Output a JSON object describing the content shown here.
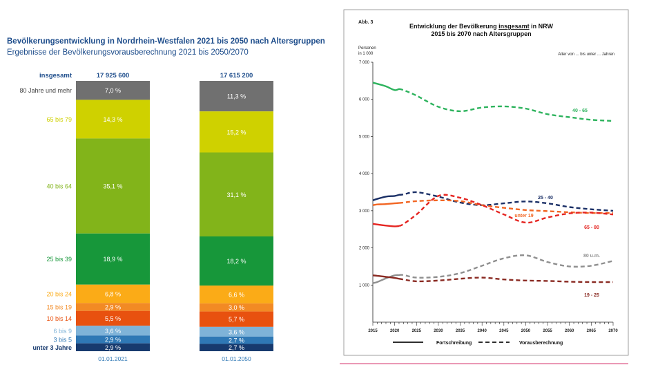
{
  "chart_data": [
    {
      "type": "stacked-bar",
      "title": "Bevölkerungsentwicklung in Nordrhein-Westfalen 2021 bis 2050 nach Altersgruppen",
      "subtitle": "Ergebnisse der Bevölkerungsvorausberechnung 2021 bis 2050/2070",
      "total_label": "insgesamt",
      "categories": [
        "80 Jahre und mehr",
        "65 bis 79",
        "40 bis 64",
        "25 bis 39",
        "20 bis 24",
        "15 bis 19",
        "10 bis 14",
        "6 bis 9",
        "3 bis 5",
        "unter 3 Jahre"
      ],
      "colors": [
        "#707070",
        "#cfd100",
        "#82b41a",
        "#17973a",
        "#fbab17",
        "#f28a24",
        "#e8510f",
        "#7fb3d8",
        "#2f78b5",
        "#173a6e"
      ],
      "bars": [
        {
          "date": "01.01.2021",
          "total": "17 925 600",
          "values": [
            7.0,
            14.3,
            35.1,
            18.9,
            6.8,
            2.9,
            5.5,
            3.6,
            2.9,
            2.9
          ],
          "labels": [
            "7,0 %",
            "14,3 %",
            "35,1 %",
            "18,9 %",
            "6,8 %",
            "2,9 %",
            "5,5 %",
            "3,6 %",
            "2,9 %",
            "2,9 %"
          ]
        },
        {
          "date": "01.01.2050",
          "total": "17 615 200",
          "values": [
            11.3,
            15.2,
            31.1,
            18.2,
            6.6,
            3.0,
            5.7,
            3.6,
            2.7,
            2.7
          ],
          "labels": [
            "11,3 %",
            "15,2 %",
            "31,1 %",
            "18,2 %",
            "6,6 %",
            "3,0 %",
            "5,7 %",
            "3,6 %",
            "2,7 %",
            "2,7 %"
          ]
        }
      ]
    },
    {
      "type": "line",
      "abb": "Abb. 3",
      "title_line1_pre": "Entwicklung der Bevölkerung ",
      "title_line1_u": "insgesamt",
      "title_line1_post": " in NRW",
      "title_line2": "2015 bis 2070 nach Altersgruppen",
      "ylabel_line1": "Personen",
      "ylabel_line2": "in 1 000",
      "legend_note": "Alter von ... bis unter ... Jahren",
      "xlim": [
        2015,
        2070
      ],
      "ylim": [
        0,
        7000
      ],
      "x_ticks": [
        2015,
        2020,
        2025,
        2030,
        2035,
        2040,
        2045,
        2050,
        2055,
        2060,
        2065,
        2070
      ],
      "y_ticks": [
        1000,
        2000,
        3000,
        4000,
        5000,
        6000,
        7000
      ],
      "y_tick_labels": [
        "1 000",
        "2 000",
        "3 000",
        "4 000",
        "5 000",
        "6 000",
        "7 000"
      ],
      "series": [
        {
          "name": "40 - 65",
          "color": "#2db35d",
          "x": [
            2015,
            2016,
            2018,
            2020,
            2021,
            2022,
            2025,
            2030,
            2035,
            2040,
            2045,
            2050,
            2055,
            2060,
            2065,
            2070
          ],
          "y": [
            6450,
            6420,
            6350,
            6250,
            6280,
            6250,
            6100,
            5800,
            5680,
            5780,
            5810,
            5750,
            5600,
            5520,
            5450,
            5420
          ]
        },
        {
          "name": "25 - 40",
          "color": "#1a2f66",
          "x": [
            2015,
            2016,
            2018,
            2020,
            2021,
            2022,
            2025,
            2030,
            2035,
            2040,
            2045,
            2050,
            2055,
            2060,
            2065,
            2070
          ],
          "y": [
            3280,
            3320,
            3380,
            3400,
            3430,
            3440,
            3500,
            3380,
            3220,
            3150,
            3200,
            3250,
            3200,
            3100,
            3040,
            3000
          ]
        },
        {
          "name": "unter 19",
          "color": "#f26522",
          "x": [
            2015,
            2016,
            2018,
            2020,
            2021,
            2022,
            2025,
            2030,
            2035,
            2040,
            2045,
            2050,
            2055,
            2060,
            2065,
            2070
          ],
          "y": [
            3150,
            3170,
            3180,
            3200,
            3210,
            3220,
            3260,
            3280,
            3260,
            3150,
            3080,
            3020,
            2990,
            2960,
            2940,
            2940
          ]
        },
        {
          "name": "65 - 80",
          "color": "#e52521",
          "x": [
            2015,
            2016,
            2018,
            2020,
            2021,
            2022,
            2025,
            2030,
            2035,
            2040,
            2045,
            2050,
            2055,
            2060,
            2065,
            2070
          ],
          "y": [
            2650,
            2630,
            2600,
            2580,
            2590,
            2640,
            2900,
            3400,
            3350,
            3150,
            2900,
            2680,
            2820,
            2930,
            2950,
            2900
          ]
        },
        {
          "name": "80 u.m.",
          "color": "#8f8f8f",
          "x": [
            2015,
            2016,
            2018,
            2020,
            2021,
            2022,
            2025,
            2030,
            2035,
            2040,
            2045,
            2050,
            2055,
            2060,
            2065,
            2070
          ],
          "y": [
            1050,
            1080,
            1180,
            1260,
            1270,
            1270,
            1200,
            1220,
            1320,
            1520,
            1720,
            1800,
            1620,
            1500,
            1520,
            1650
          ]
        },
        {
          "name": "19 - 25",
          "color": "#8a2a22",
          "x": [
            2015,
            2016,
            2018,
            2020,
            2021,
            2022,
            2025,
            2030,
            2035,
            2040,
            2045,
            2050,
            2055,
            2060,
            2065,
            2070
          ],
          "y": [
            1260,
            1250,
            1220,
            1190,
            1170,
            1150,
            1100,
            1120,
            1170,
            1200,
            1150,
            1120,
            1110,
            1090,
            1080,
            1080
          ]
        }
      ],
      "legend_solid": "Fortschreibung",
      "legend_dashed": "Vorausberechnung"
    }
  ]
}
